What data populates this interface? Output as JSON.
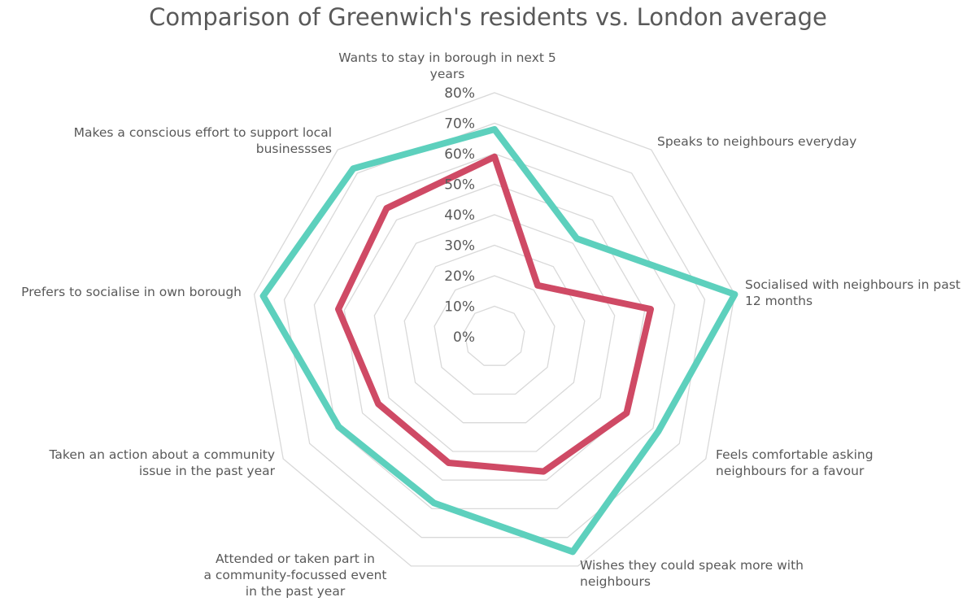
{
  "chart_data": {
    "type": "radar",
    "title": "Comparison of Greenwich's residents vs. London average",
    "categories": [
      "Wants to stay in borough in next 5 years",
      "Speaks to neighbours everyday",
      "Socialised with neighbours in past 12 months",
      "Feels comfortable asking neighbours for a favour",
      "Wishes they could speak more with neighbours",
      "Attended or taken part in a community-focussed event in the past year",
      "Taken an action about a community issue in the past year",
      "Prefers to socialise in own borough",
      "Makes a conscious effort to support local businessses"
    ],
    "tick_labels": [
      "0%",
      "10%",
      "20%",
      "30%",
      "40%",
      "50%",
      "60%",
      "70%",
      "80%"
    ],
    "rmax": 80,
    "grid": true,
    "legend": "none",
    "series": [
      {
        "values": [
          68,
          42,
          80,
          62,
          75,
          58,
          59,
          77,
          72
        ],
        "color": "#5dd0bd"
      },
      {
        "values": [
          59,
          22,
          52,
          50,
          47,
          44,
          44,
          52,
          55
        ],
        "color": "#cf4a65"
      }
    ]
  }
}
